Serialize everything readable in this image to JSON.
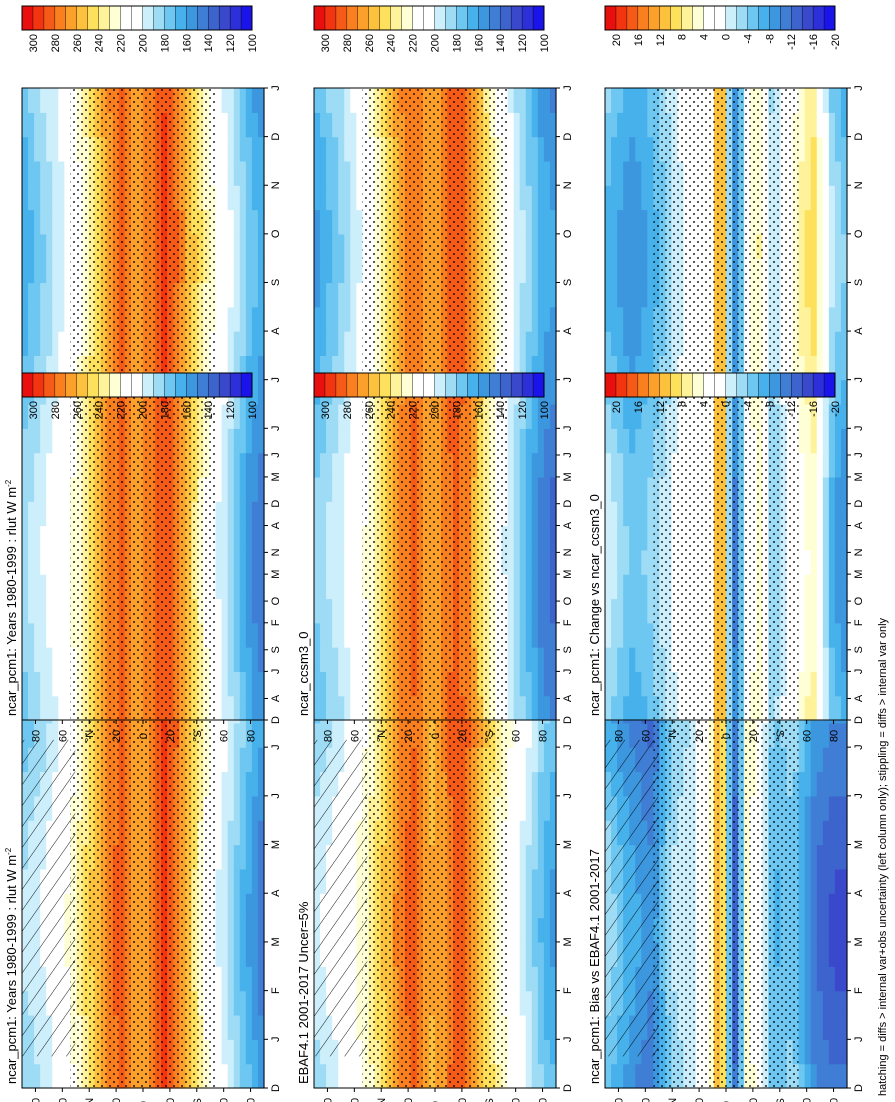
{
  "figure": {
    "footnote": "hatching = diffs > internal var+obs uncertainty (left column only); stippling = diffs > internal var only"
  },
  "months": [
    "D",
    "J",
    "F",
    "M",
    "A",
    "M",
    "J",
    "J",
    "A",
    "S",
    "O",
    "N",
    "D",
    "J"
  ],
  "lat_labels": [
    "80",
    "60",
    "°N",
    "20",
    "0",
    "20",
    "°S",
    "60",
    "80"
  ],
  "colorbars": {
    "absolute": {
      "tick_labels": [
        "300",
        "280",
        "260",
        "240",
        "220",
        "200",
        "180",
        "160",
        "140",
        "120",
        "100"
      ],
      "colors": [
        "#e8100e",
        "#f23410",
        "#f65a17",
        "#f97f1f",
        "#fba12b",
        "#fcc23d",
        "#fde05b",
        "#fef39a",
        "#ffffd6",
        "#ffffff",
        "#ffffff",
        "#cdeefb",
        "#9edcf6",
        "#6dc7f1",
        "#46b1ea",
        "#3d97df",
        "#3f7ed4",
        "#3d64cc",
        "#3a48cc",
        "#2d2fd8",
        "#1a14ea"
      ]
    },
    "difference": {
      "tick_labels": [
        "20",
        "16",
        "12",
        "8",
        "4",
        "0",
        "-4",
        "-8",
        "-12",
        "-16",
        "-20"
      ],
      "colors": [
        "#e8100e",
        "#f23410",
        "#f65a17",
        "#f97f1f",
        "#fba12b",
        "#fcc23d",
        "#fde05b",
        "#fef39a",
        "#ffffd6",
        "#ffffff",
        "#ffffff",
        "#cdeefb",
        "#9edcf6",
        "#6dc7f1",
        "#46b1ea",
        "#3d97df",
        "#3f7ed4",
        "#3d64cc",
        "#3a48cc",
        "#2d2fd8",
        "#1a14ea"
      ]
    }
  },
  "chart_data": [
    {
      "id": "p1",
      "type": "heatmap",
      "title": "ncar_pcm1: Years 1980-1999 : rlut W m",
      "title_superscript": "-2",
      "x": [
        "D",
        "J",
        "F",
        "M",
        "A",
        "M",
        "J",
        "J",
        "A",
        "S",
        "O",
        "N",
        "D",
        "J"
      ],
      "y": [
        "80N",
        "60N",
        "40N",
        "20N",
        "0",
        "20S",
        "40S",
        "60S",
        "80S"
      ],
      "colorbar": "absolute",
      "hatching": true,
      "stippling": true,
      "profile": [
        {
          "lat": 90,
          "value": 175
        },
        {
          "lat": 70,
          "value": 190
        },
        {
          "lat": 50,
          "value": 215
        },
        {
          "lat": 35,
          "value": 245
        },
        {
          "lat": 25,
          "value": 265
        },
        {
          "lat": 15,
          "value": 275
        },
        {
          "lat": 5,
          "value": 250
        },
        {
          "lat": -5,
          "value": 262
        },
        {
          "lat": -15,
          "value": 285
        },
        {
          "lat": -25,
          "value": 270
        },
        {
          "lat": -35,
          "value": 245
        },
        {
          "lat": -50,
          "value": 210
        },
        {
          "lat": -65,
          "value": 190
        },
        {
          "lat": -80,
          "value": 165
        },
        {
          "lat": -90,
          "value": 150
        }
      ]
    },
    {
      "id": "p2",
      "type": "heatmap",
      "title": "ncar_pcm1: Years 1980-1999 : rlut W m",
      "title_superscript": "-2",
      "x": [
        "D",
        "J",
        "F",
        "M",
        "A",
        "M",
        "J",
        "J",
        "A",
        "S",
        "O",
        "N",
        "D",
        "J"
      ],
      "y": [
        "80N",
        "60N",
        "40N",
        "20N",
        "0",
        "20S",
        "40S",
        "60S",
        "80S"
      ],
      "colorbar": "absolute",
      "hatching": false,
      "stippling": true,
      "profile": [
        {
          "lat": 90,
          "value": 170
        },
        {
          "lat": 70,
          "value": 190
        },
        {
          "lat": 50,
          "value": 212
        },
        {
          "lat": 35,
          "value": 242
        },
        {
          "lat": 25,
          "value": 262
        },
        {
          "lat": 15,
          "value": 275
        },
        {
          "lat": 5,
          "value": 255
        },
        {
          "lat": -5,
          "value": 265
        },
        {
          "lat": -15,
          "value": 282
        },
        {
          "lat": -25,
          "value": 268
        },
        {
          "lat": -35,
          "value": 245
        },
        {
          "lat": -50,
          "value": 212
        },
        {
          "lat": -65,
          "value": 188
        },
        {
          "lat": -80,
          "value": 160
        },
        {
          "lat": -90,
          "value": 150
        }
      ]
    },
    {
      "id": "p3",
      "type": "heatmap",
      "title": "EBAF4.1 2001-2017 Uncer=5%",
      "title_superscript": "",
      "x": [
        "D",
        "J",
        "F",
        "M",
        "A",
        "M",
        "J",
        "J",
        "A",
        "S",
        "O",
        "N",
        "D",
        "J"
      ],
      "y": [
        "80N",
        "60N",
        "40N",
        "20N",
        "0",
        "20S",
        "40S",
        "60S",
        "80S"
      ],
      "colorbar": "absolute",
      "hatching": true,
      "stippling": true,
      "profile": [
        {
          "lat": 90,
          "value": 180
        },
        {
          "lat": 70,
          "value": 195
        },
        {
          "lat": 50,
          "value": 218
        },
        {
          "lat": 35,
          "value": 245
        },
        {
          "lat": 25,
          "value": 268
        },
        {
          "lat": 15,
          "value": 272
        },
        {
          "lat": 5,
          "value": 250
        },
        {
          "lat": -5,
          "value": 258
        },
        {
          "lat": -15,
          "value": 280
        },
        {
          "lat": -25,
          "value": 270
        },
        {
          "lat": -35,
          "value": 248
        },
        {
          "lat": -50,
          "value": 220
        },
        {
          "lat": -65,
          "value": 200
        },
        {
          "lat": -80,
          "value": 175
        },
        {
          "lat": -90,
          "value": 165
        }
      ]
    },
    {
      "id": "p4",
      "type": "heatmap",
      "title": "ncar_ccsm3_0",
      "title_superscript": "",
      "x": [
        "D",
        "J",
        "F",
        "M",
        "A",
        "M",
        "J",
        "J",
        "A",
        "S",
        "O",
        "N",
        "D",
        "J"
      ],
      "y": [
        "80N",
        "60N",
        "40N",
        "20N",
        "0",
        "20S",
        "40S",
        "60S",
        "80S"
      ],
      "colorbar": "absolute",
      "hatching": false,
      "stippling": true,
      "profile": [
        {
          "lat": 90,
          "value": 165
        },
        {
          "lat": 70,
          "value": 185
        },
        {
          "lat": 50,
          "value": 210
        },
        {
          "lat": 35,
          "value": 242
        },
        {
          "lat": 25,
          "value": 262
        },
        {
          "lat": 15,
          "value": 272
        },
        {
          "lat": 5,
          "value": 258
        },
        {
          "lat": -5,
          "value": 262
        },
        {
          "lat": -15,
          "value": 278
        },
        {
          "lat": -25,
          "value": 266
        },
        {
          "lat": -35,
          "value": 240
        },
        {
          "lat": -50,
          "value": 205
        },
        {
          "lat": -65,
          "value": 178
        },
        {
          "lat": -80,
          "value": 152
        },
        {
          "lat": -90,
          "value": 145
        }
      ]
    },
    {
      "id": "p5",
      "type": "heatmap",
      "title": "ncar_pcm1: Bias vs EBAF4.1 2001-2017",
      "title_superscript": "",
      "x": [
        "D",
        "J",
        "F",
        "M",
        "A",
        "M",
        "J",
        "J",
        "A",
        "S",
        "O",
        "N",
        "D",
        "J"
      ],
      "y": [
        "80N",
        "60N",
        "40N",
        "20N",
        "0",
        "20S",
        "40S",
        "60S",
        "80S"
      ],
      "colorbar": "difference",
      "hatching": true,
      "stippling": true,
      "profile": [
        {
          "lat": 90,
          "value": -6
        },
        {
          "lat": 70,
          "value": -10
        },
        {
          "lat": 55,
          "value": -12
        },
        {
          "lat": 40,
          "value": -4
        },
        {
          "lat": 25,
          "value": -2
        },
        {
          "lat": 12,
          "value": 2
        },
        {
          "lat": 4,
          "value": 14
        },
        {
          "lat": -2,
          "value": -6
        },
        {
          "lat": -8,
          "value": -14
        },
        {
          "lat": -15,
          "value": 4
        },
        {
          "lat": -25,
          "value": 2
        },
        {
          "lat": -35,
          "value": -6
        },
        {
          "lat": -50,
          "value": -4
        },
        {
          "lat": -65,
          "value": -10
        },
        {
          "lat": -80,
          "value": -12
        },
        {
          "lat": -90,
          "value": -12
        }
      ]
    },
    {
      "id": "p6",
      "type": "heatmap",
      "title": "ncar_pcm1: Change vs ncar_ccsm3_0",
      "title_superscript": "",
      "x": [
        "D",
        "J",
        "F",
        "M",
        "A",
        "M",
        "J",
        "J",
        "A",
        "S",
        "O",
        "N",
        "D",
        "J"
      ],
      "y": [
        "80N",
        "60N",
        "40N",
        "20N",
        "0",
        "20S",
        "40S",
        "60S",
        "80S"
      ],
      "colorbar": "difference",
      "hatching": false,
      "stippling": true,
      "profile": [
        {
          "lat": 90,
          "value": -4
        },
        {
          "lat": 70,
          "value": -8
        },
        {
          "lat": 55,
          "value": -6
        },
        {
          "lat": 40,
          "value": -2
        },
        {
          "lat": 25,
          "value": 2
        },
        {
          "lat": 12,
          "value": 0
        },
        {
          "lat": 4,
          "value": 14
        },
        {
          "lat": -2,
          "value": -4
        },
        {
          "lat": -8,
          "value": -12
        },
        {
          "lat": -15,
          "value": 2
        },
        {
          "lat": -25,
          "value": 4
        },
        {
          "lat": -35,
          "value": -4
        },
        {
          "lat": -50,
          "value": 2
        },
        {
          "lat": -65,
          "value": 6
        },
        {
          "lat": -80,
          "value": -6
        },
        {
          "lat": -90,
          "value": -8
        }
      ]
    }
  ]
}
